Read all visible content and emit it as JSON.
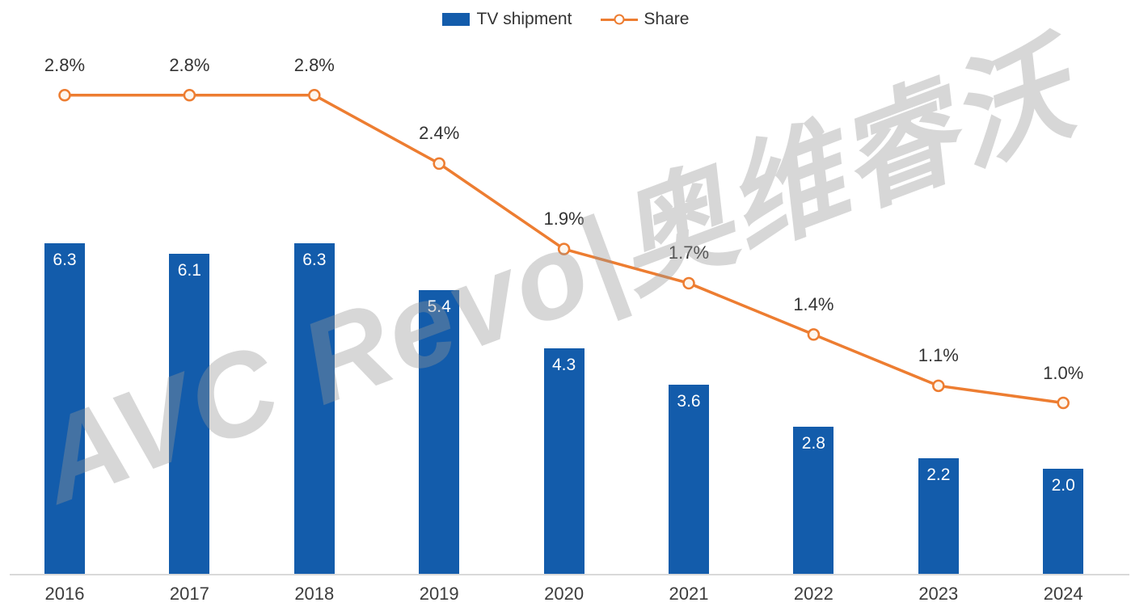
{
  "legend": {
    "tv_shipment_label": "TV shipment",
    "share_label": "Share"
  },
  "watermark_text": "AVC Revo|奥维睿沃",
  "colors": {
    "bar": "#135cab",
    "line": "#ED7D31",
    "marker_fill": "#fdf6ee",
    "axis": "#d9d9d9",
    "text": "#333333"
  },
  "chart_data": {
    "type": "bar+line",
    "title": "",
    "categories": [
      "2016",
      "2017",
      "2018",
      "2019",
      "2020",
      "2021",
      "2022",
      "2023",
      "2024"
    ],
    "series": [
      {
        "name": "TV shipment",
        "type": "bar",
        "values": [
          6.3,
          6.1,
          6.3,
          5.4,
          4.3,
          3.6,
          2.8,
          2.2,
          2.0
        ],
        "data_labels": [
          "6.3",
          "6.1",
          "6.3",
          "5.4",
          "4.3",
          "3.6",
          "2.8",
          "2.2",
          "2.0"
        ]
      },
      {
        "name": "Share",
        "type": "line",
        "values": [
          2.8,
          2.8,
          2.8,
          2.4,
          1.9,
          1.7,
          1.4,
          1.1,
          1.0
        ],
        "data_labels": [
          "2.8%",
          "2.8%",
          "2.8%",
          "2.4%",
          "1.9%",
          "1.7%",
          "1.4%",
          "1.1%",
          "1.0%"
        ]
      }
    ],
    "bar_axis": {
      "min": 0,
      "max": 6.8,
      "visible": false
    },
    "line_axis": {
      "min": 0,
      "max": 3.35,
      "visible": false,
      "unit": "%"
    },
    "xlabel": "",
    "ylabel": "",
    "grid": false,
    "legend_position": "top-center"
  }
}
